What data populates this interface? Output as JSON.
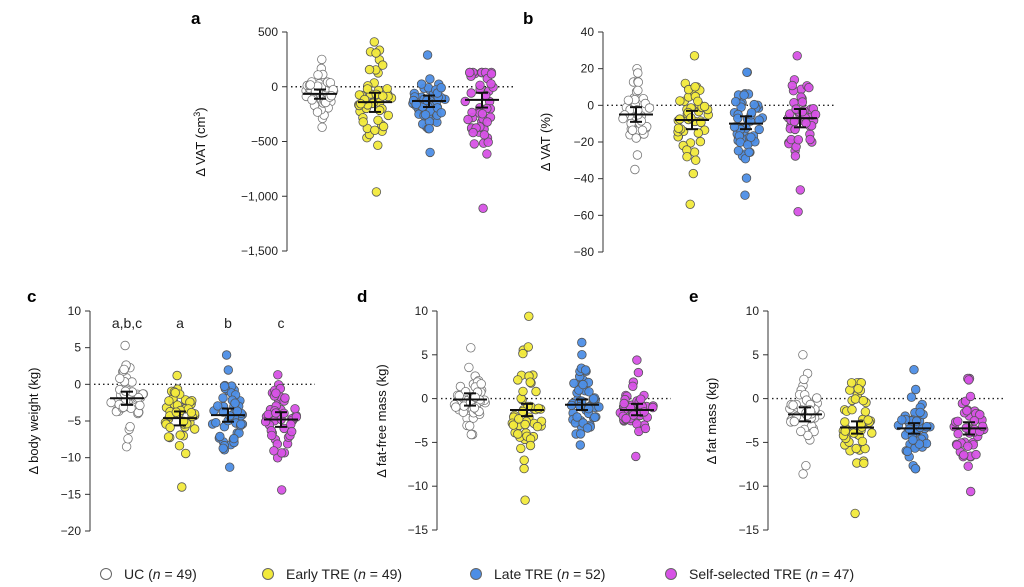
{
  "legend": {
    "groups": [
      {
        "label": "UC (",
        "n_text": "n",
        "count_text": " = 49)",
        "color": "#ffffff"
      },
      {
        "label": "Early TRE (",
        "n_text": "n",
        "count_text": " = 49)",
        "color": "#f2ea3c"
      },
      {
        "label": "Late TRE (",
        "n_text": "n",
        "count_text": " = 52)",
        "color": "#4d8ee6"
      },
      {
        "label": "Self-selected TRE (",
        "n_text": "n",
        "count_text": " = 47)",
        "color": "#d752e6"
      }
    ]
  },
  "chart_data": [
    {
      "type": "scatter",
      "panel": "a",
      "ylabel_main": "Δ VAT (cm",
      "ylabel_sup": "3",
      "ylabel_tail": ")",
      "ylim": [
        -1500,
        500
      ],
      "yticks": [
        500,
        0,
        -500,
        -1000,
        -1500
      ],
      "ytick_labels": [
        "500",
        "0",
        "−500",
        "−1,000",
        "−1,500"
      ],
      "groups": [
        {
          "mean": -65,
          "ci": [
            -110,
            -25
          ],
          "n": 49,
          "min": -370,
          "max": 250
        },
        {
          "mean": -140,
          "ci": [
            -230,
            -55
          ],
          "n": 49,
          "min": -960,
          "max": 410
        },
        {
          "mean": -130,
          "ci": [
            -185,
            -80
          ],
          "n": 52,
          "min": -600,
          "max": 290
        },
        {
          "mean": -120,
          "ci": [
            -190,
            -55
          ],
          "n": 47,
          "min": -1110,
          "max": 130
        }
      ]
    },
    {
      "type": "scatter",
      "panel": "b",
      "ylabel_main": "Δ VAT (%)",
      "ylabel_sup": "",
      "ylabel_tail": "",
      "ylim": [
        -80,
        40
      ],
      "yticks": [
        40,
        20,
        0,
        -20,
        -40,
        -60,
        -80
      ],
      "ytick_labels": [
        "40",
        "20",
        "0",
        "−20",
        "−40",
        "−60",
        "−80"
      ],
      "groups": [
        {
          "mean": -5,
          "ci": [
            -9,
            -1
          ],
          "n": 49,
          "min": -35,
          "max": 20
        },
        {
          "mean": -8,
          "ci": [
            -13,
            -3
          ],
          "n": 49,
          "min": -54,
          "max": 27
        },
        {
          "mean": -10,
          "ci": [
            -13,
            -6
          ],
          "n": 52,
          "min": -49,
          "max": 18
        },
        {
          "mean": -7,
          "ci": [
            -12,
            -2
          ],
          "n": 47,
          "min": -58,
          "max": 27
        }
      ]
    },
    {
      "type": "scatter",
      "panel": "c",
      "ylabel_main": "Δ body weight (kg)",
      "ylabel_sup": "",
      "ylabel_tail": "",
      "ylim": [
        -20,
        10
      ],
      "yticks": [
        10,
        5,
        0,
        -5,
        -10,
        -15,
        -20
      ],
      "ytick_labels": [
        "10",
        "5",
        "0",
        "−5",
        "−10",
        "−15",
        "−20"
      ],
      "significance": [
        "a,b,c",
        "a",
        "b",
        "c"
      ],
      "groups": [
        {
          "mean": -1.9,
          "ci": [
            -2.8,
            -1.0
          ],
          "n": 49,
          "min": -8.5,
          "max": 5.3
        },
        {
          "mean": -4.6,
          "ci": [
            -5.6,
            -3.7
          ],
          "n": 49,
          "min": -14.0,
          "max": 1.2
        },
        {
          "mean": -4.2,
          "ci": [
            -5.1,
            -3.3
          ],
          "n": 52,
          "min": -11.3,
          "max": 4.0
        },
        {
          "mean": -4.8,
          "ci": [
            -5.8,
            -3.8
          ],
          "n": 47,
          "min": -14.4,
          "max": 1.3
        }
      ]
    },
    {
      "type": "scatter",
      "panel": "d",
      "ylabel_main": "Δ fat-free mass (kg)",
      "ylabel_sup": "",
      "ylabel_tail": "",
      "ylim": [
        -15,
        10
      ],
      "yticks": [
        10,
        5,
        0,
        -5,
        -10,
        -15
      ],
      "ytick_labels": [
        "10",
        "5",
        "0",
        "−5",
        "−10",
        "−15"
      ],
      "groups": [
        {
          "mean": -0.1,
          "ci": [
            -0.8,
            0.6
          ],
          "n": 49,
          "min": -4.1,
          "max": 5.8
        },
        {
          "mean": -1.3,
          "ci": [
            -2.0,
            -0.6
          ],
          "n": 49,
          "min": -11.6,
          "max": 9.4
        },
        {
          "mean": -0.7,
          "ci": [
            -1.3,
            -0.1
          ],
          "n": 52,
          "min": -5.3,
          "max": 6.4
        },
        {
          "mean": -1.3,
          "ci": [
            -1.9,
            -0.6
          ],
          "n": 47,
          "min": -6.6,
          "max": 4.4
        }
      ]
    },
    {
      "type": "scatter",
      "panel": "e",
      "ylabel_main": "Δ fat mass (kg)",
      "ylabel_sup": "",
      "ylabel_tail": "",
      "ylim": [
        -15,
        10
      ],
      "yticks": [
        10,
        5,
        0,
        -5,
        -10,
        -15
      ],
      "ytick_labels": [
        "10",
        "5",
        "0",
        "−5",
        "−10",
        "−15"
      ],
      "groups": [
        {
          "mean": -1.8,
          "ci": [
            -2.6,
            -1.0
          ],
          "n": 49,
          "min": -8.6,
          "max": 5.0
        },
        {
          "mean": -3.3,
          "ci": [
            -4.0,
            -2.6
          ],
          "n": 49,
          "min": -13.1,
          "max": 1.8
        },
        {
          "mean": -3.4,
          "ci": [
            -4.0,
            -2.8
          ],
          "n": 52,
          "min": -8.0,
          "max": 3.3
        },
        {
          "mean": -3.4,
          "ci": [
            -4.1,
            -2.7
          ],
          "n": 47,
          "min": -10.6,
          "max": 2.3
        }
      ]
    }
  ]
}
